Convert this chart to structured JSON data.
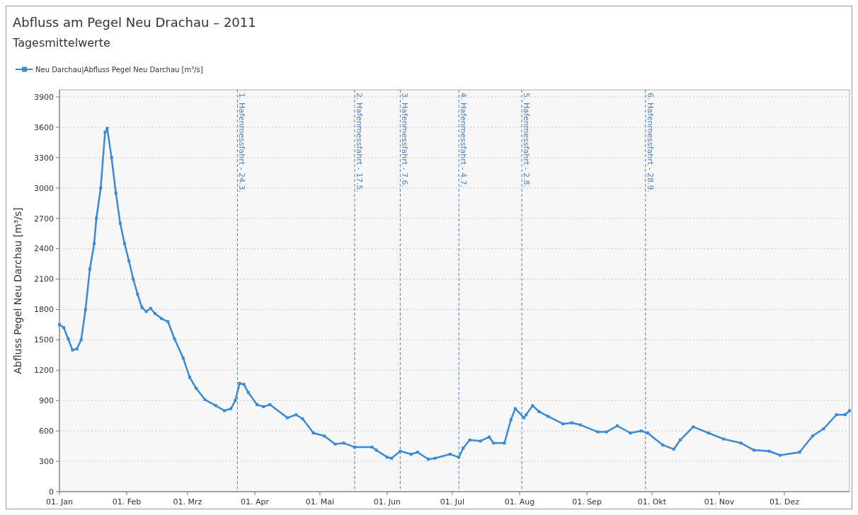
{
  "chart_data": {
    "type": "line",
    "title": "Abfluss am Pegel Neu Drachau – 2011",
    "subtitle": "Tagesmittelwerte",
    "ylabel": "Abfluss Pegel Neu Darchau [m³/s]",
    "x": [
      "2011-01-01",
      "2011-01-03",
      "2011-01-05",
      "2011-01-07",
      "2011-01-09",
      "2011-01-11",
      "2011-01-13",
      "2011-01-15",
      "2011-01-17",
      "2011-01-18",
      "2011-01-20",
      "2011-01-22",
      "2011-01-23",
      "2011-01-25",
      "2011-01-27",
      "2011-01-29",
      "2011-01-31",
      "2011-02-02",
      "2011-02-04",
      "2011-02-06",
      "2011-02-08",
      "2011-02-10",
      "2011-02-12",
      "2011-02-14",
      "2011-02-17",
      "2011-02-20",
      "2011-02-23",
      "2011-02-27",
      "2011-03-02",
      "2011-03-05",
      "2011-03-09",
      "2011-03-14",
      "2011-03-18",
      "2011-03-21",
      "2011-03-23",
      "2011-03-25",
      "2011-03-27",
      "2011-03-29",
      "2011-04-02",
      "2011-04-05",
      "2011-04-08",
      "2011-04-16",
      "2011-04-20",
      "2011-04-23",
      "2011-04-28",
      "2011-05-03",
      "2011-05-08",
      "2011-05-12",
      "2011-05-17",
      "2011-05-25",
      "2011-05-27",
      "2011-06-01",
      "2011-06-03",
      "2011-06-07",
      "2011-06-12",
      "2011-06-15",
      "2011-06-20",
      "2011-06-23",
      "2011-06-30",
      "2011-07-04",
      "2011-07-06",
      "2011-07-09",
      "2011-07-14",
      "2011-07-18",
      "2011-07-20",
      "2011-07-25",
      "2011-07-28",
      "2011-07-30",
      "2011-08-03",
      "2011-08-04",
      "2011-08-07",
      "2011-08-10",
      "2011-08-14",
      "2011-08-21",
      "2011-08-25",
      "2011-08-29",
      "2011-09-06",
      "2011-09-10",
      "2011-09-15",
      "2011-09-21",
      "2011-09-26",
      "2011-09-29",
      "2011-10-06",
      "2011-10-11",
      "2011-10-14",
      "2011-10-20",
      "2011-10-27",
      "2011-11-03",
      "2011-11-11",
      "2011-11-17",
      "2011-11-24",
      "2011-11-29",
      "2011-12-08",
      "2011-12-14",
      "2011-12-19",
      "2011-12-25",
      "2011-12-29",
      "2011-12-31"
    ],
    "series": [
      {
        "name": "Neu Darchau|Abfluss Pegel Neu Darchau [m³/s]",
        "color": "#3a8ad4",
        "values": [
          1650,
          1620,
          1510,
          1400,
          1410,
          1500,
          1800,
          2200,
          2450,
          2700,
          3000,
          3550,
          3590,
          3300,
          2950,
          2650,
          2450,
          2280,
          2100,
          1950,
          1820,
          1780,
          1810,
          1760,
          1710,
          1680,
          1510,
          1320,
          1130,
          1020,
          910,
          850,
          800,
          820,
          900,
          1070,
          1060,
          980,
          860,
          840,
          860,
          730,
          760,
          720,
          580,
          550,
          470,
          480,
          440,
          440,
          410,
          340,
          330,
          400,
          370,
          390,
          320,
          330,
          370,
          340,
          430,
          510,
          500,
          540,
          480,
          480,
          710,
          820,
          730,
          760,
          850,
          790,
          745,
          670,
          680,
          660,
          590,
          590,
          650,
          580,
          600,
          580,
          460,
          420,
          510,
          640,
          580,
          520,
          480,
          410,
          400,
          360,
          390,
          550,
          620,
          760,
          760,
          800
        ]
      }
    ],
    "xlim": [
      "2011-01-01",
      "2011-12-31"
    ],
    "xticks": [
      {
        "value": "2011-01-01",
        "label": "01. Jan"
      },
      {
        "value": "2011-02-01",
        "label": "01. Feb"
      },
      {
        "value": "2011-03-01",
        "label": "01. Mrz"
      },
      {
        "value": "2011-04-01",
        "label": "01. Apr"
      },
      {
        "value": "2011-05-01",
        "label": "01. Mai"
      },
      {
        "value": "2011-06-01",
        "label": "01. Jun"
      },
      {
        "value": "2011-07-01",
        "label": "01. Jul"
      },
      {
        "value": "2011-08-01",
        "label": "01. Aug"
      },
      {
        "value": "2011-09-01",
        "label": "01. Sep"
      },
      {
        "value": "2011-10-01",
        "label": "01. Okt"
      },
      {
        "value": "2011-11-01",
        "label": "01. Nov"
      },
      {
        "value": "2011-12-01",
        "label": "01. Dez"
      }
    ],
    "ylim": [
      0,
      3970
    ],
    "yticks": [
      0,
      300,
      600,
      900,
      1200,
      1500,
      1800,
      2100,
      2400,
      2700,
      3000,
      3300,
      3600,
      3900
    ],
    "grid": "y",
    "legend": "top left",
    "marker": "square",
    "ref_lines": [
      {
        "axis": "x",
        "value": "2011-03-24",
        "label": "1. Hafenmessfahrt - 24.3.",
        "color": "#4a7ebf",
        "line_style": "dashed"
      },
      {
        "axis": "x",
        "value": "2011-05-17",
        "label": "2. Hafenmessfahrt - 17.5.",
        "color": "#4a7ebf",
        "line_style": "dashed"
      },
      {
        "axis": "x",
        "value": "2011-06-07",
        "label": "3. Hafenmessfahrt - 7.6.",
        "color": "#4a7ebf",
        "line_style": "dashed"
      },
      {
        "axis": "x",
        "value": "2011-07-04",
        "label": "4. Hafenmessfahrt - 4.7.",
        "color": "#4a7ebf",
        "line_style": "dashed"
      },
      {
        "axis": "x",
        "value": "2011-08-02",
        "label": "5. Hafenmessfahrt - 2.8.",
        "color": "#4a7ebf",
        "line_style": "dashed"
      },
      {
        "axis": "x",
        "value": "2011-09-28",
        "label": "6. Hafenmessfahrt - 28.9.",
        "color": "#4a7ebf",
        "line_style": "dashed"
      }
    ]
  }
}
